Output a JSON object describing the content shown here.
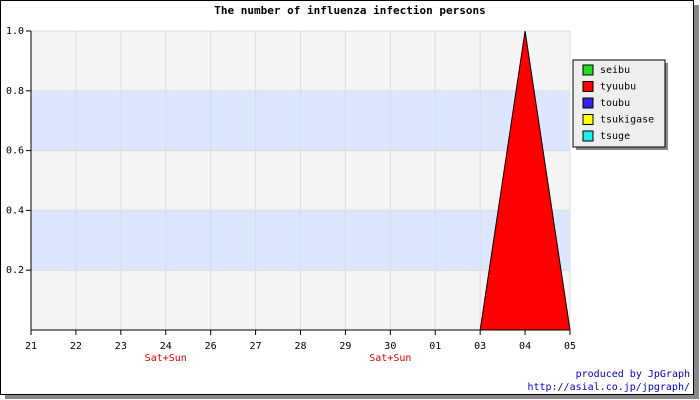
{
  "chart_data": {
    "type": "area",
    "title": "The number of influenza infection persons",
    "categories": [
      "21",
      "22",
      "23",
      "24",
      "26",
      "27",
      "28",
      "29",
      "30",
      "01",
      "03",
      "04",
      "05"
    ],
    "category_notes": [
      null,
      null,
      null,
      "Sat+Sun",
      null,
      null,
      null,
      null,
      "Sat+Sun",
      null,
      null,
      null,
      null
    ],
    "series": [
      {
        "name": "seibu",
        "color": "#22dd22",
        "values": [
          0,
          0,
          0,
          0,
          0,
          0,
          0,
          0,
          0,
          0,
          0,
          0,
          0
        ]
      },
      {
        "name": "tyuubu",
        "color": "#ff0000",
        "values": [
          0,
          0,
          0,
          0,
          0,
          0,
          0,
          0,
          0,
          0,
          0,
          1,
          0
        ]
      },
      {
        "name": "toubu",
        "color": "#3322ee",
        "values": [
          0,
          0,
          0,
          0,
          0,
          0,
          0,
          0,
          0,
          0,
          0,
          0,
          0
        ]
      },
      {
        "name": "tsukigase",
        "color": "#ffff00",
        "values": [
          0,
          0,
          0,
          0,
          0,
          0,
          0,
          0,
          0,
          0,
          0,
          0,
          0
        ]
      },
      {
        "name": "tsuge",
        "color": "#22eeee",
        "values": [
          0,
          0,
          0,
          0,
          0,
          0,
          0,
          0,
          0,
          0,
          0,
          0,
          0
        ]
      }
    ],
    "ylim": [
      0,
      1
    ],
    "yticks": [
      0.2,
      0.4,
      0.6,
      0.8,
      {
        "value": 1,
        "label": "1.0"
      }
    ],
    "grid": true,
    "legend": "right",
    "credits": [
      "produced by JpGraph",
      "http://asial.co.jp/jpgraph/"
    ]
  }
}
